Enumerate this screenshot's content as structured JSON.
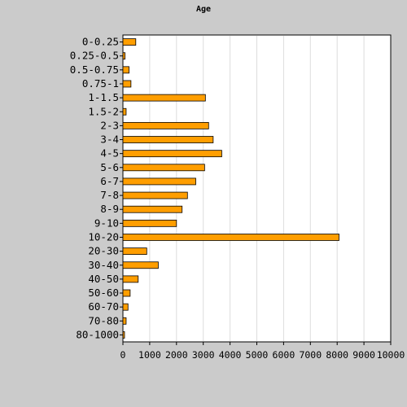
{
  "chart_data": {
    "type": "bar",
    "orientation": "horizontal",
    "title": "Age",
    "xlabel": "",
    "ylabel": "",
    "categories": [
      "0-0.25",
      "0.25-0.5",
      "0.5-0.75",
      "0.75-1",
      "1-1.5",
      "1.5-2",
      "2-3",
      "3-4",
      "4-5",
      "5-6",
      "6-7",
      "7-8",
      "8-9",
      "9-10",
      "10-20",
      "20-30",
      "30-40",
      "40-50",
      "50-60",
      "60-70",
      "70-80",
      "80-1000"
    ],
    "values": [
      480,
      80,
      230,
      300,
      3080,
      120,
      3200,
      3370,
      3690,
      3050,
      2720,
      2410,
      2210,
      2000,
      8070,
      890,
      1320,
      570,
      270,
      190,
      120,
      60
    ],
    "xlim": [
      0,
      10000
    ],
    "xticks": [
      "0",
      "1000",
      "2000",
      "3000",
      "4000",
      "5000",
      "6000",
      "7000",
      "8000",
      "9000",
      "10000"
    ],
    "grid": "vertical",
    "legend": "none",
    "colors": {
      "bar": "#ff9e00",
      "bar_edge": "#000000",
      "plot_bg": "#ffffff",
      "frame_bg": "#cbcbcb",
      "grid": "#dddddd"
    }
  }
}
